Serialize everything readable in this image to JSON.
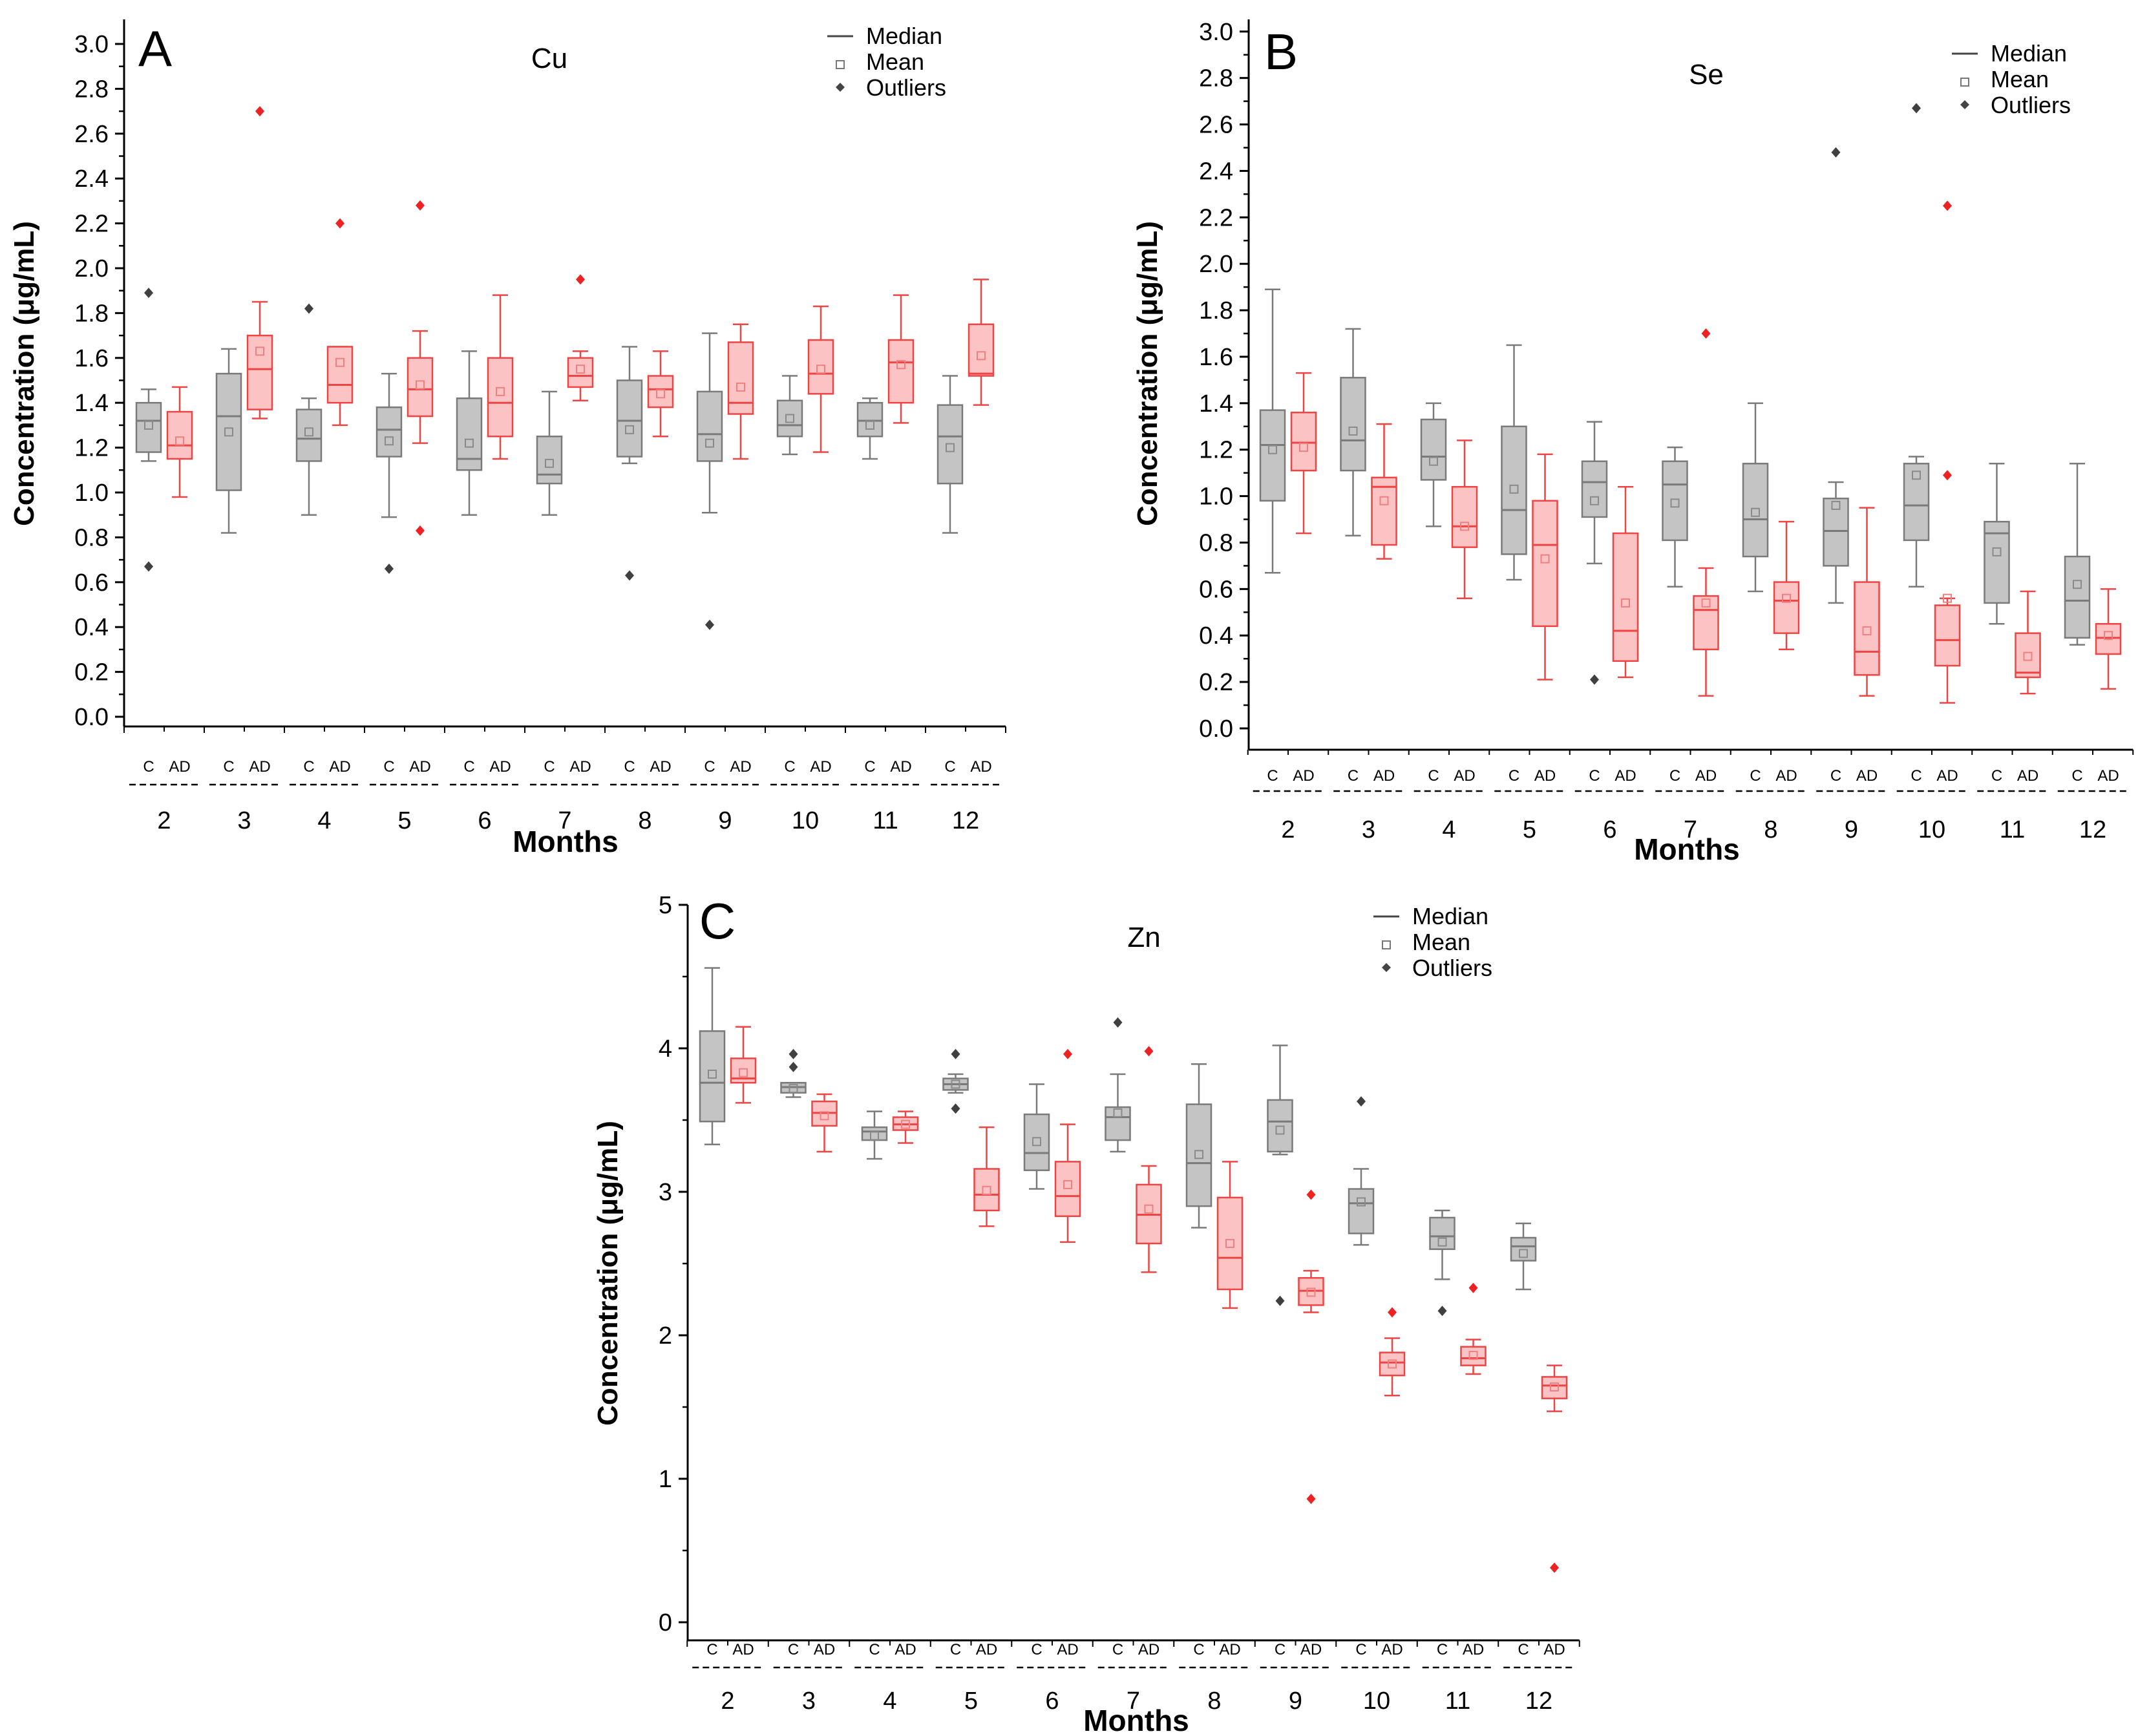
{
  "chart_data": [
    {
      "type": "box",
      "panel": "A",
      "title": "Cu",
      "xlabel": "Months",
      "ylabel": "Concentration (μg/mL)",
      "ylim": [
        -0.1,
        3.1
      ],
      "yticks": [
        "0.0",
        "0.2",
        "0.4",
        "0.6",
        "0.8",
        "1.0",
        "1.2",
        "1.4",
        "1.6",
        "1.8",
        "2.0",
        "2.2",
        "2.4",
        "2.6",
        "2.8",
        "3.0"
      ],
      "months": [
        "2",
        "3",
        "4",
        "5",
        "6",
        "7",
        "8",
        "9",
        "10",
        "11",
        "12"
      ],
      "group_labels": [
        "C",
        "AD"
      ],
      "legend": [
        "Median",
        "Mean",
        "Outliers"
      ],
      "colors": {
        "C": "#7a7a7a",
        "C_fill": "#c4c4c4",
        "AD": "#ee4444",
        "AD_fill": "#fbc3c3"
      },
      "series": [
        {
          "name": "C",
          "boxes": [
            {
              "min": 1.14,
              "q1": 1.18,
              "median": 1.32,
              "q3": 1.4,
              "max": 1.46,
              "mean": 1.3,
              "outliers": [
                0.67,
                1.89
              ]
            },
            {
              "min": 0.82,
              "q1": 1.01,
              "median": 1.34,
              "q3": 1.53,
              "max": 1.64,
              "mean": 1.27,
              "outliers": []
            },
            {
              "min": 0.9,
              "q1": 1.14,
              "median": 1.24,
              "q3": 1.37,
              "max": 1.42,
              "mean": 1.27,
              "outliers": [
                1.82
              ]
            },
            {
              "min": 0.89,
              "q1": 1.16,
              "median": 1.28,
              "q3": 1.38,
              "max": 1.53,
              "mean": 1.23,
              "outliers": [
                0.66
              ]
            },
            {
              "min": 0.9,
              "q1": 1.1,
              "median": 1.15,
              "q3": 1.42,
              "max": 1.63,
              "mean": 1.22,
              "outliers": []
            },
            {
              "min": 0.9,
              "q1": 1.04,
              "median": 1.08,
              "q3": 1.25,
              "max": 1.45,
              "mean": 1.13,
              "outliers": []
            },
            {
              "min": 1.13,
              "q1": 1.16,
              "median": 1.32,
              "q3": 1.5,
              "max": 1.65,
              "mean": 1.28,
              "outliers": [
                0.63
              ]
            },
            {
              "min": 0.91,
              "q1": 1.14,
              "median": 1.26,
              "q3": 1.45,
              "max": 1.71,
              "mean": 1.22,
              "outliers": [
                0.41
              ]
            },
            {
              "min": 1.17,
              "q1": 1.25,
              "median": 1.3,
              "q3": 1.41,
              "max": 1.52,
              "mean": 1.33,
              "outliers": []
            },
            {
              "min": 1.15,
              "q1": 1.25,
              "median": 1.32,
              "q3": 1.4,
              "max": 1.42,
              "mean": 1.3,
              "outliers": []
            },
            {
              "min": 0.82,
              "q1": 1.04,
              "median": 1.25,
              "q3": 1.39,
              "max": 1.52,
              "mean": 1.2,
              "outliers": []
            }
          ]
        },
        {
          "name": "AD",
          "boxes": [
            {
              "min": 0.98,
              "q1": 1.15,
              "median": 1.21,
              "q3": 1.36,
              "max": 1.47,
              "mean": 1.23,
              "outliers": []
            },
            {
              "min": 1.33,
              "q1": 1.37,
              "median": 1.55,
              "q3": 1.7,
              "max": 1.85,
              "mean": 1.63,
              "outliers": [
                2.7
              ]
            },
            {
              "min": 1.3,
              "q1": 1.4,
              "median": 1.48,
              "q3": 1.65,
              "max": 1.65,
              "mean": 1.58,
              "outliers": [
                2.2
              ]
            },
            {
              "min": 1.22,
              "q1": 1.34,
              "median": 1.46,
              "q3": 1.6,
              "max": 1.72,
              "mean": 1.48,
              "outliers": [
                0.83,
                2.28
              ]
            },
            {
              "min": 1.15,
              "q1": 1.25,
              "median": 1.4,
              "q3": 1.6,
              "max": 1.88,
              "mean": 1.45,
              "outliers": []
            },
            {
              "min": 1.41,
              "q1": 1.47,
              "median": 1.52,
              "q3": 1.6,
              "max": 1.63,
              "mean": 1.55,
              "outliers": [
                1.95
              ]
            },
            {
              "min": 1.25,
              "q1": 1.38,
              "median": 1.46,
              "q3": 1.52,
              "max": 1.63,
              "mean": 1.44,
              "outliers": []
            },
            {
              "min": 1.15,
              "q1": 1.35,
              "median": 1.4,
              "q3": 1.67,
              "max": 1.75,
              "mean": 1.47,
              "outliers": []
            },
            {
              "min": 1.18,
              "q1": 1.44,
              "median": 1.53,
              "q3": 1.68,
              "max": 1.83,
              "mean": 1.55,
              "outliers": []
            },
            {
              "min": 1.31,
              "q1": 1.4,
              "median": 1.58,
              "q3": 1.68,
              "max": 1.88,
              "mean": 1.57,
              "outliers": []
            },
            {
              "min": 1.39,
              "q1": 1.52,
              "median": 1.53,
              "q3": 1.75,
              "max": 1.95,
              "mean": 1.61,
              "outliers": []
            }
          ]
        }
      ]
    },
    {
      "type": "box",
      "panel": "B",
      "title": "Se",
      "xlabel": "Months",
      "ylabel": "Concentration (μg/mL)",
      "ylim": [
        -0.1,
        3.0
      ],
      "yticks": [
        "0.0",
        "0.2",
        "0.4",
        "0.6",
        "0.8",
        "1.0",
        "1.2",
        "1.4",
        "1.6",
        "1.8",
        "2.0",
        "2.2",
        "2.4",
        "2.6",
        "2.8",
        "3.0"
      ],
      "months": [
        "2",
        "3",
        "4",
        "5",
        "6",
        "7",
        "8",
        "9",
        "10",
        "11",
        "12"
      ],
      "group_labels": [
        "C",
        "AD"
      ],
      "legend": [
        "Median",
        "Mean",
        "Outliers"
      ],
      "colors": {
        "C": "#7a7a7a",
        "C_fill": "#c4c4c4",
        "AD": "#ee4444",
        "AD_fill": "#fbc3c3"
      },
      "series": [
        {
          "name": "C",
          "boxes": [
            {
              "min": 0.67,
              "q1": 0.98,
              "median": 1.22,
              "q3": 1.37,
              "max": 1.89,
              "mean": 1.2,
              "outliers": []
            },
            {
              "min": 0.83,
              "q1": 1.11,
              "median": 1.24,
              "q3": 1.51,
              "max": 1.72,
              "mean": 1.28,
              "outliers": []
            },
            {
              "min": 0.87,
              "q1": 1.07,
              "median": 1.17,
              "q3": 1.33,
              "max": 1.4,
              "mean": 1.15,
              "outliers": []
            },
            {
              "min": 0.64,
              "q1": 0.75,
              "median": 0.94,
              "q3": 1.3,
              "max": 1.65,
              "mean": 1.03,
              "outliers": []
            },
            {
              "min": 0.71,
              "q1": 0.91,
              "median": 1.06,
              "q3": 1.15,
              "max": 1.32,
              "mean": 0.98,
              "outliers": [
                0.21
              ]
            },
            {
              "min": 0.61,
              "q1": 0.81,
              "median": 1.05,
              "q3": 1.15,
              "max": 1.21,
              "mean": 0.97,
              "outliers": []
            },
            {
              "min": 0.59,
              "q1": 0.74,
              "median": 0.9,
              "q3": 1.14,
              "max": 1.4,
              "mean": 0.93,
              "outliers": []
            },
            {
              "min": 0.54,
              "q1": 0.7,
              "median": 0.85,
              "q3": 0.99,
              "max": 1.06,
              "mean": 0.96,
              "outliers": [
                2.48
              ]
            },
            {
              "min": 0.61,
              "q1": 0.81,
              "median": 0.96,
              "q3": 1.14,
              "max": 1.17,
              "mean": 1.09,
              "outliers": [
                2.67
              ]
            },
            {
              "min": 0.45,
              "q1": 0.54,
              "median": 0.84,
              "q3": 0.89,
              "max": 1.14,
              "mean": 0.76,
              "outliers": []
            },
            {
              "min": 0.36,
              "q1": 0.39,
              "median": 0.55,
              "q3": 0.74,
              "max": 1.14,
              "mean": 0.62,
              "outliers": []
            }
          ]
        },
        {
          "name": "AD",
          "boxes": [
            {
              "min": 0.84,
              "q1": 1.11,
              "median": 1.23,
              "q3": 1.36,
              "max": 1.53,
              "mean": 1.21,
              "outliers": []
            },
            {
              "min": 0.73,
              "q1": 0.79,
              "median": 1.04,
              "q3": 1.08,
              "max": 1.31,
              "mean": 0.98,
              "outliers": []
            },
            {
              "min": 0.56,
              "q1": 0.78,
              "median": 0.87,
              "q3": 1.04,
              "max": 1.24,
              "mean": 0.87,
              "outliers": []
            },
            {
              "min": 0.21,
              "q1": 0.44,
              "median": 0.79,
              "q3": 0.98,
              "max": 1.18,
              "mean": 0.73,
              "outliers": []
            },
            {
              "min": 0.22,
              "q1": 0.29,
              "median": 0.42,
              "q3": 0.84,
              "max": 1.04,
              "mean": 0.54,
              "outliers": []
            },
            {
              "min": 0.14,
              "q1": 0.34,
              "median": 0.51,
              "q3": 0.57,
              "max": 0.69,
              "mean": 0.54,
              "outliers": [
                1.7
              ]
            },
            {
              "min": 0.34,
              "q1": 0.41,
              "median": 0.55,
              "q3": 0.63,
              "max": 0.89,
              "mean": 0.56,
              "outliers": []
            },
            {
              "min": 0.14,
              "q1": 0.23,
              "median": 0.33,
              "q3": 0.63,
              "max": 0.95,
              "mean": 0.42,
              "outliers": []
            },
            {
              "min": 0.11,
              "q1": 0.27,
              "median": 0.38,
              "q3": 0.53,
              "max": 0.56,
              "mean": 0.56,
              "outliers": [
                1.09,
                2.25
              ]
            },
            {
              "min": 0.15,
              "q1": 0.22,
              "median": 0.24,
              "q3": 0.41,
              "max": 0.59,
              "mean": 0.31,
              "outliers": []
            },
            {
              "min": 0.17,
              "q1": 0.32,
              "median": 0.39,
              "q3": 0.45,
              "max": 0.6,
              "mean": 0.4,
              "outliers": []
            }
          ]
        }
      ]
    },
    {
      "type": "box",
      "panel": "C",
      "title": "Zn",
      "xlabel": "Months",
      "ylabel": "Concentration (μg/mL)",
      "ylim": [
        -0.2,
        5.0
      ],
      "yticks": [
        "0",
        "1",
        "2",
        "3",
        "4",
        "5"
      ],
      "months": [
        "2",
        "3",
        "4",
        "5",
        "6",
        "7",
        "8",
        "9",
        "10",
        "11",
        "12"
      ],
      "group_labels": [
        "C",
        "AD"
      ],
      "legend": [
        "Median",
        "Mean",
        "Outliers"
      ],
      "colors": {
        "C": "#7a7a7a",
        "C_fill": "#c4c4c4",
        "AD": "#ee4444",
        "AD_fill": "#fbc3c3"
      },
      "series": [
        {
          "name": "C",
          "boxes": [
            {
              "min": 3.33,
              "q1": 3.49,
              "median": 3.76,
              "q3": 4.12,
              "max": 4.56,
              "mean": 3.82,
              "outliers": []
            },
            {
              "min": 3.66,
              "q1": 3.69,
              "median": 3.73,
              "q3": 3.76,
              "max": 3.76,
              "mean": 3.72,
              "outliers": [
                3.87,
                3.96
              ]
            },
            {
              "min": 3.23,
              "q1": 3.36,
              "median": 3.42,
              "q3": 3.45,
              "max": 3.56,
              "mean": 3.39,
              "outliers": []
            },
            {
              "min": 3.69,
              "q1": 3.71,
              "median": 3.75,
              "q3": 3.79,
              "max": 3.82,
              "mean": 3.75,
              "outliers": [
                3.58,
                3.96
              ]
            },
            {
              "min": 3.02,
              "q1": 3.15,
              "median": 3.27,
              "q3": 3.54,
              "max": 3.75,
              "mean": 3.35,
              "outliers": []
            },
            {
              "min": 3.28,
              "q1": 3.36,
              "median": 3.52,
              "q3": 3.59,
              "max": 3.82,
              "mean": 3.55,
              "outliers": [
                4.18
              ]
            },
            {
              "min": 2.75,
              "q1": 2.9,
              "median": 3.2,
              "q3": 3.61,
              "max": 3.89,
              "mean": 3.26,
              "outliers": []
            },
            {
              "min": 3.26,
              "q1": 3.28,
              "median": 3.49,
              "q3": 3.64,
              "max": 4.02,
              "mean": 3.43,
              "outliers": [
                2.24
              ]
            },
            {
              "min": 2.63,
              "q1": 2.71,
              "median": 2.92,
              "q3": 3.02,
              "max": 3.16,
              "mean": 2.93,
              "outliers": [
                3.63
              ]
            },
            {
              "min": 2.39,
              "q1": 2.6,
              "median": 2.69,
              "q3": 2.82,
              "max": 2.87,
              "mean": 2.65,
              "outliers": [
                2.17
              ]
            },
            {
              "min": 2.32,
              "q1": 2.52,
              "median": 2.62,
              "q3": 2.68,
              "max": 2.78,
              "mean": 2.57,
              "outliers": []
            }
          ]
        },
        {
          "name": "AD",
          "boxes": [
            {
              "min": 3.62,
              "q1": 3.76,
              "median": 3.79,
              "q3": 3.93,
              "max": 4.15,
              "mean": 3.83,
              "outliers": []
            },
            {
              "min": 3.28,
              "q1": 3.46,
              "median": 3.55,
              "q3": 3.63,
              "max": 3.68,
              "mean": 3.53,
              "outliers": []
            },
            {
              "min": 3.34,
              "q1": 3.43,
              "median": 3.47,
              "q3": 3.52,
              "max": 3.56,
              "mean": 3.47,
              "outliers": []
            },
            {
              "min": 2.76,
              "q1": 2.87,
              "median": 2.98,
              "q3": 3.16,
              "max": 3.45,
              "mean": 3.01,
              "outliers": []
            },
            {
              "min": 2.65,
              "q1": 2.83,
              "median": 2.97,
              "q3": 3.21,
              "max": 3.47,
              "mean": 3.05,
              "outliers": [
                3.96
              ]
            },
            {
              "min": 2.44,
              "q1": 2.64,
              "median": 2.84,
              "q3": 3.05,
              "max": 3.18,
              "mean": 2.88,
              "outliers": [
                3.98
              ]
            },
            {
              "min": 2.19,
              "q1": 2.32,
              "median": 2.54,
              "q3": 2.96,
              "max": 3.21,
              "mean": 2.64,
              "outliers": []
            },
            {
              "min": 2.16,
              "q1": 2.21,
              "median": 2.31,
              "q3": 2.4,
              "max": 2.45,
              "mean": 2.3,
              "outliers": [
                0.86,
                2.98
              ]
            },
            {
              "min": 1.58,
              "q1": 1.72,
              "median": 1.81,
              "q3": 1.88,
              "max": 1.98,
              "mean": 1.8,
              "outliers": [
                2.16
              ]
            },
            {
              "min": 1.73,
              "q1": 1.79,
              "median": 1.84,
              "q3": 1.92,
              "max": 1.97,
              "mean": 1.86,
              "outliers": [
                2.33
              ]
            },
            {
              "min": 1.47,
              "q1": 1.56,
              "median": 1.65,
              "q3": 1.71,
              "max": 1.79,
              "mean": 1.64,
              "outliers": [
                0.38
              ]
            }
          ]
        }
      ]
    }
  ]
}
